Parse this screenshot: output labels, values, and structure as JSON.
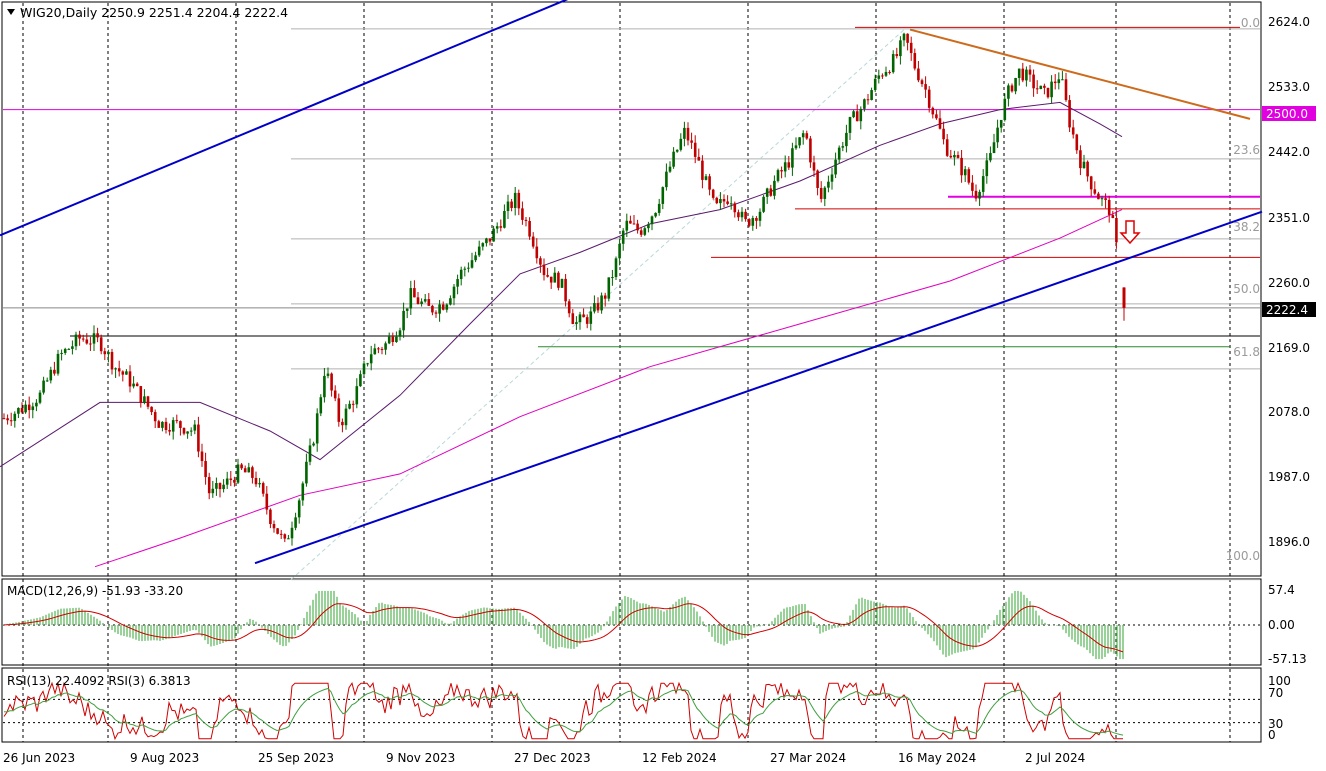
{
  "header": {
    "symbol_line": "WIG20,Daily  2250.9 2251.4 2204.4 2222.4"
  },
  "price_axis": {
    "ticks": [
      "2624.0",
      "2533.0",
      "2442.0",
      "2351.0",
      "2260.0",
      "2169.0",
      "2078.0",
      "1987.0",
      "1896.0"
    ],
    "badges": [
      {
        "label": "2500.0",
        "color": "#e000e0"
      },
      {
        "label": "2222.4",
        "color": "#000000"
      }
    ]
  },
  "fib_labels": [
    "0.0",
    "23.6",
    "38.2",
    "50.0",
    "61.8",
    "100.0"
  ],
  "x_axis": {
    "labels": [
      "26 Jun 2023",
      "9 Aug 2023",
      "25 Sep 2023",
      "9 Nov 2023",
      "27 Dec 2023",
      "12 Feb 2024",
      "27 Mar 2024",
      "16 May 2024",
      "2 Jul 2024"
    ]
  },
  "macd": {
    "label": "MACD(12,26,9) -51.93 -33.20",
    "ticks": [
      "57.4",
      "0.00",
      "-57.13"
    ]
  },
  "rsi": {
    "label": "RSI(13) 22.4092  RSI(3) 6.3813",
    "ticks": [
      "100",
      "70",
      "30",
      "0"
    ]
  },
  "colors": {
    "candle_up": "#006400",
    "candle_down": "#c00000",
    "channel": "#0000c8",
    "resistance_brown": "#cd6a1c",
    "magenta": "#e000e0",
    "ma_purple": "#5a1a6e",
    "ma_pink": "#e000c0",
    "fib": "#b0b0b0",
    "red_level": "#d40000",
    "macd_hist": "#6dbf6d",
    "macd_signal": "#d00000",
    "rsi13": "#40a040",
    "rsi3": "#d00000"
  },
  "chart_data": {
    "type": "candlestick",
    "instrument": "WIG20",
    "timeframe": "Daily",
    "last": {
      "open": 2250.9,
      "high": 2251.4,
      "low": 2204.4,
      "close": 2222.4
    },
    "ylim": [
      1860,
      2630
    ],
    "fib_levels": {
      "0.0": 2613,
      "23.6": 2431,
      "38.2": 2319,
      "50.0": 2228,
      "61.8": 2137,
      "100.0": 1842
    },
    "horizontal_levels": [
      {
        "value": 2615,
        "color": "red"
      },
      {
        "value": 2500,
        "color": "magenta"
      },
      {
        "value": 2378,
        "color": "magenta"
      },
      {
        "value": 2361,
        "color": "red"
      },
      {
        "value": 2293,
        "color": "red"
      },
      {
        "value": 2183,
        "color": "black"
      },
      {
        "value": 2168,
        "color": "green"
      }
    ],
    "price_path": [
      [
        0,
        2065
      ],
      [
        20,
        2080
      ],
      [
        40,
        2100
      ],
      [
        60,
        2155
      ],
      [
        80,
        2180
      ],
      [
        100,
        2175
      ],
      [
        115,
        2140
      ],
      [
        130,
        2120
      ],
      [
        145,
        2090
      ],
      [
        160,
        2060
      ],
      [
        175,
        2060
      ],
      [
        195,
        2050
      ],
      [
        210,
        1960
      ],
      [
        225,
        1975
      ],
      [
        240,
        1995
      ],
      [
        255,
        1985
      ],
      [
        270,
        1930
      ],
      [
        285,
        1890
      ],
      [
        300,
        1960
      ],
      [
        315,
        2050
      ],
      [
        325,
        2140
      ],
      [
        340,
        2060
      ],
      [
        355,
        2100
      ],
      [
        370,
        2160
      ],
      [
        385,
        2170
      ],
      [
        400,
        2200
      ],
      [
        410,
        2240
      ],
      [
        430,
        2220
      ],
      [
        445,
        2230
      ],
      [
        460,
        2270
      ],
      [
        475,
        2295
      ],
      [
        490,
        2320
      ],
      [
        505,
        2355
      ],
      [
        515,
        2375
      ],
      [
        530,
        2330
      ],
      [
        545,
        2270
      ],
      [
        560,
        2260
      ],
      [
        575,
        2200
      ],
      [
        590,
        2210
      ],
      [
        605,
        2240
      ],
      [
        615,
        2280
      ],
      [
        625,
        2340
      ],
      [
        640,
        2330
      ],
      [
        655,
        2360
      ],
      [
        670,
        2420
      ],
      [
        685,
        2470
      ],
      [
        700,
        2420
      ],
      [
        715,
        2360
      ],
      [
        730,
        2380
      ],
      [
        745,
        2340
      ],
      [
        760,
        2360
      ],
      [
        775,
        2400
      ],
      [
        790,
        2430
      ],
      [
        805,
        2470
      ],
      [
        820,
        2370
      ],
      [
        835,
        2430
      ],
      [
        850,
        2480
      ],
      [
        865,
        2510
      ],
      [
        880,
        2550
      ],
      [
        895,
        2570
      ],
      [
        905,
        2600
      ],
      [
        915,
        2560
      ],
      [
        925,
        2530
      ],
      [
        935,
        2490
      ],
      [
        945,
        2450
      ],
      [
        955,
        2430
      ],
      [
        965,
        2410
      ],
      [
        975,
        2380
      ],
      [
        990,
        2430
      ],
      [
        1000,
        2490
      ],
      [
        1010,
        2530
      ],
      [
        1020,
        2555
      ],
      [
        1030,
        2540
      ],
      [
        1045,
        2520
      ],
      [
        1060,
        2550
      ],
      [
        1070,
        2480
      ],
      [
        1080,
        2430
      ],
      [
        1090,
        2400
      ],
      [
        1100,
        2375
      ],
      [
        1110,
        2360
      ],
      [
        1115,
        2320
      ],
      [
        1125,
        2222
      ]
    ],
    "channel_upper": {
      "from": [
        0,
        2324
      ],
      "to": [
        795,
        2787
      ]
    },
    "channel_lower": {
      "from": [
        255,
        1865
      ],
      "to": [
        1262,
        2357
      ]
    },
    "resistance_line": {
      "from": [
        910,
        2612
      ],
      "to": [
        1250,
        2487
      ]
    },
    "ma_slow": [
      [
        0,
        2000
      ],
      [
        100,
        2090
      ],
      [
        200,
        2090
      ],
      [
        270,
        2050
      ],
      [
        320,
        2010
      ],
      [
        400,
        2100
      ],
      [
        470,
        2200
      ],
      [
        520,
        2270
      ],
      [
        580,
        2300
      ],
      [
        650,
        2340
      ],
      [
        720,
        2360
      ],
      [
        800,
        2400
      ],
      [
        880,
        2450
      ],
      [
        940,
        2480
      ],
      [
        1000,
        2500
      ],
      [
        1060,
        2510
      ],
      [
        1100,
        2480
      ],
      [
        1122,
        2462
      ]
    ],
    "ma_long": [
      [
        95,
        1860
      ],
      [
        180,
        1900
      ],
      [
        300,
        1960
      ],
      [
        400,
        1990
      ],
      [
        520,
        2070
      ],
      [
        650,
        2140
      ],
      [
        800,
        2200
      ],
      [
        950,
        2260
      ],
      [
        1060,
        2320
      ],
      [
        1122,
        2360
      ]
    ],
    "macd_range": [
      -57.13,
      57.4
    ],
    "rsi_levels": [
      70,
      30
    ]
  }
}
